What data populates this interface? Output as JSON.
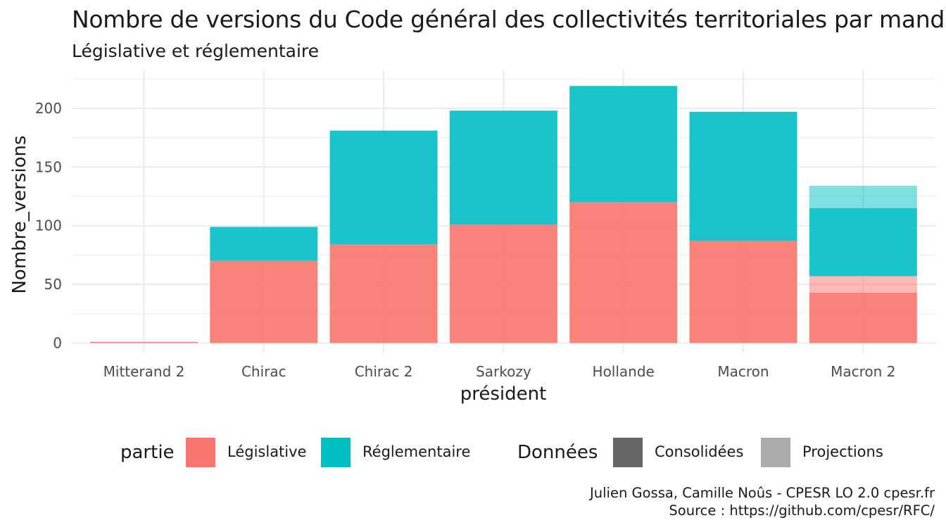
{
  "chart_data": {
    "type": "bar",
    "stacked": true,
    "title": "Nombre de versions du Code général des collectivités territoriales par mandat",
    "subtitle": "Législative et réglementaire",
    "xlabel": "président",
    "ylabel": "Nombre_versions",
    "categories": [
      "Mitterand 2",
      "Chirac",
      "Chirac 2",
      "Sarkozy",
      "Hollande",
      "Macron",
      "Macron 2"
    ],
    "ylim": [
      0,
      225
    ],
    "yticks": [
      0,
      50,
      100,
      150,
      200
    ],
    "grid": true,
    "series": [
      {
        "name": "Législative",
        "partie": "Législative",
        "donnees": "Consolidées",
        "color": "#F8766D",
        "values": [
          1,
          70,
          84,
          101,
          120,
          87,
          43
        ]
      },
      {
        "name": "Législative",
        "partie": "Législative",
        "donnees": "Projections",
        "color": "#F8766D",
        "values": [
          0,
          0,
          0,
          0,
          0,
          0,
          14
        ]
      },
      {
        "name": "Réglementaire",
        "partie": "Réglementaire",
        "donnees": "Consolidées",
        "color": "#00BFC4",
        "values": [
          0,
          29,
          97,
          97,
          99,
          110,
          58
        ]
      },
      {
        "name": "Réglementaire",
        "partie": "Réglementaire",
        "donnees": "Projections",
        "color": "#00BFC4",
        "values": [
          0,
          0,
          0,
          0,
          0,
          0,
          19
        ]
      }
    ],
    "legend": {
      "placement": "bottom",
      "groups": [
        {
          "title": "partie",
          "entries": [
            {
              "label": "Législative",
              "color": "#F8766D"
            },
            {
              "label": "Réglementaire",
              "color": "#00BFC4"
            }
          ]
        },
        {
          "title": "Données",
          "entries": [
            {
              "label": "Consolidées",
              "color": "#666666"
            },
            {
              "label": "Projections",
              "color": "#ABABAB"
            }
          ]
        }
      ]
    }
  },
  "caption": {
    "line1": "Julien Gossa, Camille Noûs - CPESR LO 2.0 cpesr.fr",
    "line2": "Source : https://github.com/cpesr/RFC/"
  }
}
